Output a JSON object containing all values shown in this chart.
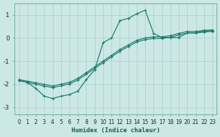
{
  "xlabel": "Humidex (Indice chaleur)",
  "bg_color": "#cce8e4",
  "line_color": "#1a7a6e",
  "grid_color": "#a8ccc8",
  "xlim": [
    -0.5,
    23.5
  ],
  "ylim": [
    -3.3,
    1.5
  ],
  "yticks": [
    -3,
    -2,
    -1,
    0,
    1
  ],
  "xticks": [
    0,
    1,
    2,
    3,
    4,
    5,
    6,
    7,
    8,
    9,
    10,
    11,
    12,
    13,
    14,
    15,
    16,
    17,
    18,
    19,
    20,
    21,
    22,
    23
  ],
  "line_straight1_x": [
    0,
    1,
    2,
    3,
    4,
    5,
    6,
    7,
    8,
    9,
    10,
    11,
    12,
    13,
    14,
    15,
    16,
    17,
    18,
    19,
    20,
    21,
    22,
    23
  ],
  "line_straight1_y": [
    -1.8,
    -1.87,
    -1.94,
    -2.01,
    -2.08,
    -2.0,
    -1.92,
    -1.75,
    -1.5,
    -1.25,
    -1.0,
    -0.75,
    -0.5,
    -0.3,
    -0.1,
    0.0,
    0.05,
    0.05,
    0.1,
    0.2,
    0.28,
    0.28,
    0.33,
    0.35
  ],
  "line_straight2_x": [
    0,
    1,
    2,
    3,
    4,
    5,
    6,
    7,
    8,
    9,
    10,
    11,
    12,
    13,
    14,
    15,
    16,
    17,
    18,
    19,
    20,
    21,
    22,
    23
  ],
  "line_straight2_y": [
    -1.85,
    -1.92,
    -2.0,
    -2.08,
    -2.15,
    -2.07,
    -1.99,
    -1.82,
    -1.57,
    -1.32,
    -1.07,
    -0.82,
    -0.57,
    -0.37,
    -0.17,
    -0.07,
    -0.02,
    -0.02,
    0.03,
    0.13,
    0.21,
    0.21,
    0.26,
    0.28
  ],
  "line_zigzag_x": [
    0,
    1,
    2,
    3,
    4,
    5,
    6,
    7,
    8,
    9,
    10,
    11,
    12,
    13,
    14,
    15,
    16,
    17,
    18,
    19,
    20,
    21,
    22,
    23
  ],
  "line_zigzag_y": [
    -1.83,
    -1.93,
    -2.18,
    -2.52,
    -2.62,
    -2.52,
    -2.45,
    -2.3,
    -1.8,
    -1.38,
    -0.2,
    0.0,
    0.75,
    0.85,
    1.05,
    1.2,
    0.2,
    0.02,
    0.02,
    0.02,
    0.22,
    0.22,
    0.3,
    0.32
  ]
}
